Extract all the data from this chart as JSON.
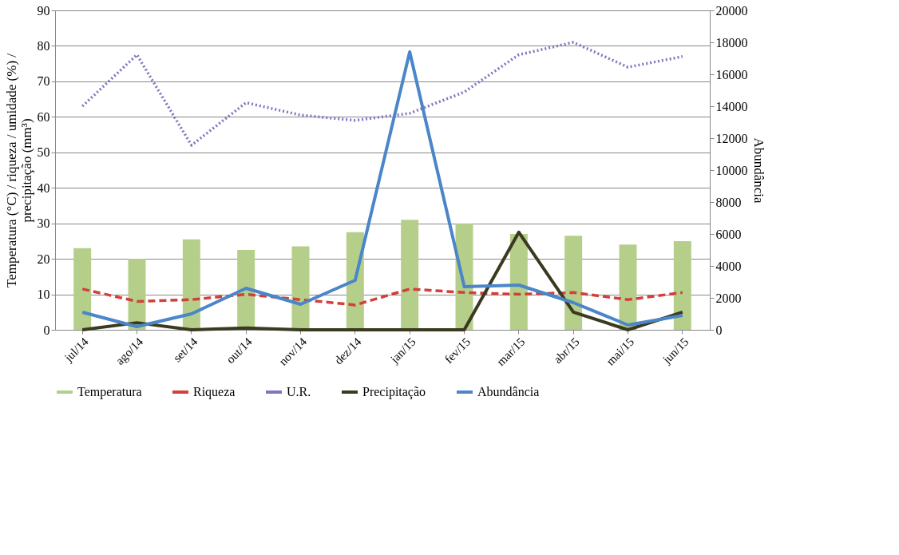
{
  "chart_data": {
    "type": "bar",
    "categories": [
      "jul/14",
      "ago/14",
      "set/14",
      "out/14",
      "nov/14",
      "dez/14",
      "jan/15",
      "fev/15",
      "mar/15",
      "abr/15",
      "mai/15",
      "jun/15"
    ],
    "ylabel": "Temperatura (°C) / riqueza / umidade (%) /\nprecipitação (mm³)",
    "y2label": "Abundância",
    "ylim": [
      0,
      90
    ],
    "yticks": [
      0,
      10,
      20,
      30,
      40,
      50,
      60,
      70,
      80,
      90
    ],
    "y2lim": [
      0,
      20000
    ],
    "y2ticks": [
      0,
      2000,
      4000,
      6000,
      8000,
      10000,
      12000,
      14000,
      16000,
      18000,
      20000
    ],
    "grid": "y",
    "legend": "bottom",
    "marker": "none",
    "series": [
      {
        "name": "Temperatura",
        "color": "#b5cf8a",
        "values": [
          23,
          20,
          25.5,
          22.5,
          23.5,
          27.5,
          31,
          30,
          27,
          26.5,
          24,
          25
        ]
      },
      {
        "name": "Riqueza",
        "type": "line",
        "line_style": "dashed",
        "color": "#d2403a",
        "values": [
          11.5,
          8,
          8.5,
          10,
          8.5,
          7,
          11.5,
          10.5,
          10,
          10.5,
          8.5,
          10.5
        ]
      },
      {
        "name": "U.R.",
        "type": "line",
        "line_style": "dotted",
        "color": "#8075c0",
        "values": [
          63,
          77.5,
          52,
          64,
          60.5,
          59,
          61,
          67,
          77.5,
          81,
          74,
          77
        ]
      },
      {
        "name": "Precipitação",
        "type": "line",
        "line_style": "solid",
        "color": "#3b3a20",
        "values": [
          0,
          2,
          0,
          0.5,
          0,
          0,
          0,
          0,
          27.5,
          5,
          0,
          5
        ]
      },
      {
        "name": "Abundância",
        "type": "line",
        "axis": "y2",
        "line_style": "solid",
        "color": "#4a86c8",
        "values": [
          1100,
          200,
          1000,
          2600,
          1600,
          3100,
          17400,
          2700,
          2800,
          1700,
          300,
          900
        ]
      }
    ]
  }
}
